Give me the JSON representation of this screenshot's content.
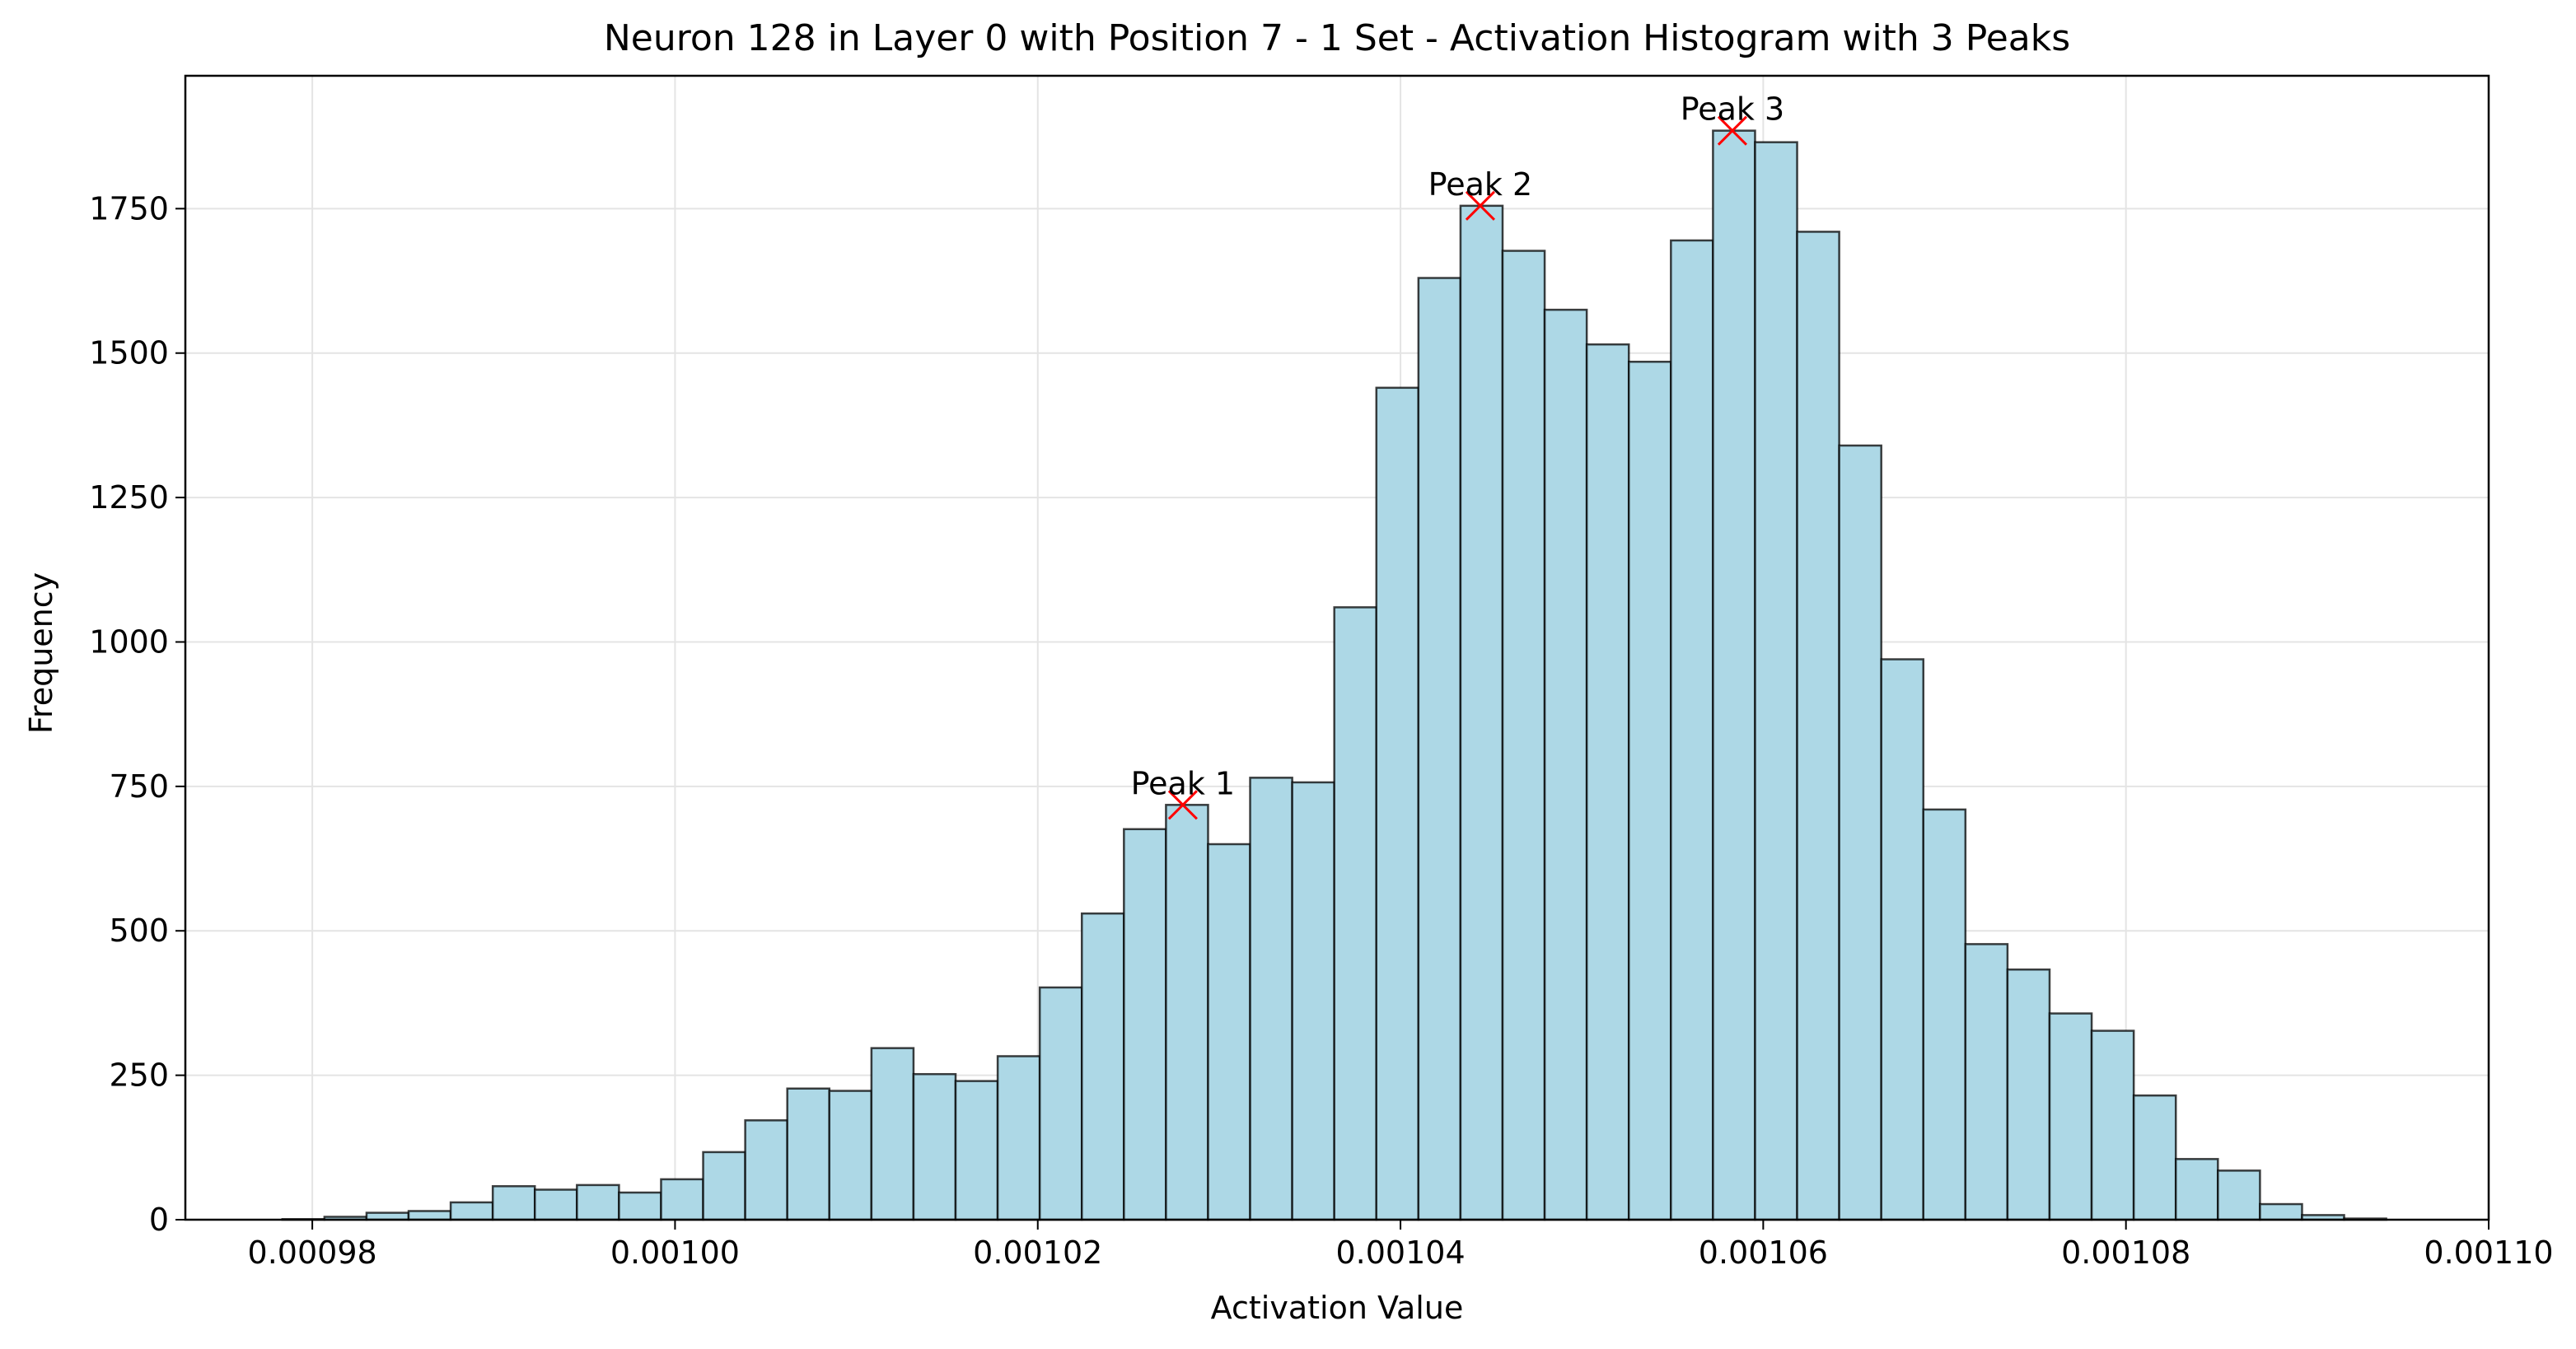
{
  "chart_data": {
    "type": "bar",
    "title": "Neuron 128 in Layer 0 with Position 7 - 1 Set - Activation Histogram with 3 Peaks",
    "xlabel": "Activation Value",
    "ylabel": "Frequency",
    "xlim": [
      0.000973,
      0.0011
    ],
    "ylim": [
      0,
      1980
    ],
    "x_ticks": [
      {
        "value": 0.00098,
        "label": "0.00098"
      },
      {
        "value": 0.001,
        "label": "0.00100"
      },
      {
        "value": 0.00102,
        "label": "0.00102"
      },
      {
        "value": 0.00104,
        "label": "0.00104"
      },
      {
        "value": 0.00106,
        "label": "0.00106"
      },
      {
        "value": 0.00108,
        "label": "0.00108"
      },
      {
        "value": 0.0011,
        "label": "0.00110"
      }
    ],
    "y_ticks": [
      {
        "value": 0,
        "label": "0"
      },
      {
        "value": 250,
        "label": "250"
      },
      {
        "value": 500,
        "label": "500"
      },
      {
        "value": 750,
        "label": "750"
      },
      {
        "value": 1000,
        "label": "1000"
      },
      {
        "value": 1250,
        "label": "1250"
      },
      {
        "value": 1500,
        "label": "1500"
      },
      {
        "value": 1750,
        "label": "1750"
      }
    ],
    "grid": true,
    "bin_start": 0.00097835,
    "bin_width": 2.32e-06,
    "values": [
      1,
      5,
      12,
      15,
      30,
      58,
      52,
      60,
      47,
      70,
      117,
      172,
      227,
      223,
      297,
      252,
      240,
      283,
      402,
      530,
      676,
      718,
      650,
      765,
      757,
      1060,
      1440,
      1630,
      1755,
      1677,
      1575,
      1515,
      1485,
      1695,
      1885,
      1865,
      1710,
      1340,
      970,
      710,
      477,
      433,
      357,
      327,
      215,
      105,
      85,
      27,
      8,
      2
    ],
    "peaks": [
      {
        "label": "Peak 1",
        "x": 0.001028,
        "y": 718
      },
      {
        "label": "Peak 2",
        "x": 0.0010444,
        "y": 1755
      },
      {
        "label": "Peak 3",
        "x": 0.0010583,
        "y": 1885
      }
    ],
    "colors": {
      "bar_fill": "#add8e6",
      "bar_edge": "#000000",
      "peak_marker": "#ff0000",
      "grid": "#e4e4e4"
    }
  }
}
